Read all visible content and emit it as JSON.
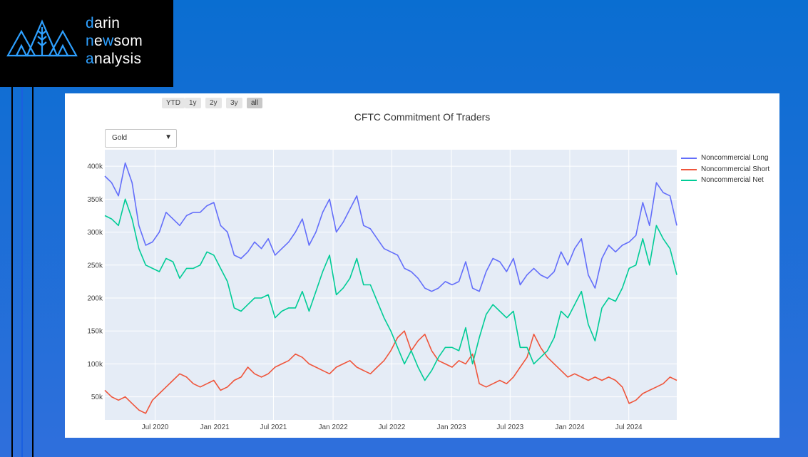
{
  "logo": {
    "line1": "darin",
    "line2": "newsom",
    "line3": "analysis",
    "accent_color": "#2ea0ff"
  },
  "range_buttons": [
    {
      "label": "YTD",
      "active": false
    },
    {
      "label": "1y",
      "active": false
    },
    {
      "label": "2y",
      "active": false
    },
    {
      "label": "3y",
      "active": false
    },
    {
      "label": "all",
      "active": true
    }
  ],
  "dropdown": {
    "selected": "Gold"
  },
  "chart_data": {
    "type": "line",
    "title": "CFTC Commitment Of Traders",
    "xlabel": "",
    "ylabel": "",
    "xlim": [
      "2020-01-28",
      "2024-11-26"
    ],
    "ylim": [
      15000,
      425000
    ],
    "yticks": [
      50000,
      100000,
      150000,
      200000,
      250000,
      300000,
      350000,
      400000
    ],
    "ytick_labels": [
      "50k",
      "100k",
      "150k",
      "200k",
      "250k",
      "300k",
      "350k",
      "400k"
    ],
    "xticks": [
      "2020-07-01",
      "2021-01-01",
      "2021-07-01",
      "2022-01-01",
      "2022-07-01",
      "2023-01-01",
      "2023-07-01",
      "2024-01-01",
      "2024-07-01"
    ],
    "xtick_labels": [
      "Jul 2020",
      "Jan 2021",
      "Jul 2021",
      "Jan 2022",
      "Jul 2022",
      "Jan 2023",
      "Jul 2023",
      "Jan 2024",
      "Jul 2024"
    ],
    "grid": true,
    "legend_position": "right",
    "plot_bgcolor": "#e5ecf6",
    "x": [
      "2020-01-28",
      "2020-02-18",
      "2020-03-10",
      "2020-03-31",
      "2020-04-21",
      "2020-05-12",
      "2020-06-02",
      "2020-06-23",
      "2020-07-14",
      "2020-08-04",
      "2020-08-25",
      "2020-09-15",
      "2020-10-06",
      "2020-10-27",
      "2020-11-17",
      "2020-12-08",
      "2020-12-29",
      "2021-01-19",
      "2021-02-09",
      "2021-03-02",
      "2021-03-23",
      "2021-04-13",
      "2021-05-04",
      "2021-05-25",
      "2021-06-15",
      "2021-07-06",
      "2021-07-27",
      "2021-08-17",
      "2021-09-07",
      "2021-09-28",
      "2021-10-19",
      "2021-11-09",
      "2021-11-30",
      "2021-12-21",
      "2022-01-11",
      "2022-02-01",
      "2022-02-22",
      "2022-03-15",
      "2022-04-05",
      "2022-04-26",
      "2022-05-17",
      "2022-06-07",
      "2022-06-28",
      "2022-07-19",
      "2022-08-09",
      "2022-08-30",
      "2022-09-20",
      "2022-10-11",
      "2022-11-01",
      "2022-11-22",
      "2022-12-13",
      "2023-01-03",
      "2023-01-24",
      "2023-02-14",
      "2023-03-07",
      "2023-03-28",
      "2023-04-18",
      "2023-05-09",
      "2023-05-30",
      "2023-06-20",
      "2023-07-11",
      "2023-08-01",
      "2023-08-22",
      "2023-09-12",
      "2023-10-03",
      "2023-10-24",
      "2023-11-14",
      "2023-12-05",
      "2023-12-26",
      "2024-01-16",
      "2024-02-06",
      "2024-02-27",
      "2024-03-19",
      "2024-04-09",
      "2024-04-30",
      "2024-05-21",
      "2024-06-11",
      "2024-07-02",
      "2024-07-23",
      "2024-08-13",
      "2024-09-03",
      "2024-09-24",
      "2024-10-15",
      "2024-11-05",
      "2024-11-26"
    ],
    "series": [
      {
        "name": "Noncommercial Long",
        "color": "#636efa",
        "values": [
          385000,
          375000,
          355000,
          405000,
          375000,
          310000,
          280000,
          285000,
          300000,
          330000,
          320000,
          310000,
          325000,
          330000,
          330000,
          340000,
          345000,
          310000,
          300000,
          265000,
          260000,
          270000,
          285000,
          275000,
          290000,
          265000,
          275000,
          285000,
          300000,
          320000,
          280000,
          300000,
          330000,
          350000,
          300000,
          315000,
          335000,
          355000,
          310000,
          305000,
          290000,
          275000,
          270000,
          265000,
          245000,
          240000,
          230000,
          215000,
          210000,
          215000,
          225000,
          220000,
          225000,
          255000,
          215000,
          210000,
          240000,
          260000,
          255000,
          240000,
          260000,
          220000,
          235000,
          245000,
          235000,
          230000,
          240000,
          270000,
          250000,
          275000,
          290000,
          235000,
          215000,
          260000,
          280000,
          270000,
          280000,
          285000,
          295000,
          345000,
          310000,
          375000,
          360000,
          355000,
          310000
        ]
      },
      {
        "name": "Noncommercial Short",
        "color": "#ef553b",
        "values": [
          60000,
          50000,
          45000,
          50000,
          40000,
          30000,
          25000,
          45000,
          55000,
          65000,
          75000,
          85000,
          80000,
          70000,
          65000,
          70000,
          75000,
          60000,
          65000,
          75000,
          80000,
          95000,
          85000,
          80000,
          85000,
          95000,
          100000,
          105000,
          115000,
          110000,
          100000,
          95000,
          90000,
          85000,
          95000,
          100000,
          105000,
          95000,
          90000,
          85000,
          95000,
          105000,
          120000,
          140000,
          150000,
          120000,
          135000,
          145000,
          120000,
          105000,
          100000,
          95000,
          105000,
          100000,
          115000,
          70000,
          65000,
          70000,
          75000,
          70000,
          80000,
          95000,
          110000,
          145000,
          125000,
          110000,
          100000,
          90000,
          80000,
          85000,
          80000,
          75000,
          80000,
          75000,
          80000,
          75000,
          65000,
          40000,
          45000,
          55000,
          60000,
          65000,
          70000,
          80000,
          75000
        ]
      },
      {
        "name": "Noncommercial Net",
        "color": "#00cc96",
        "values": [
          325000,
          320000,
          310000,
          350000,
          320000,
          275000,
          250000,
          245000,
          240000,
          260000,
          255000,
          230000,
          245000,
          245000,
          250000,
          270000,
          265000,
          245000,
          225000,
          185000,
          180000,
          190000,
          200000,
          200000,
          205000,
          170000,
          180000,
          185000,
          185000,
          210000,
          180000,
          210000,
          240000,
          265000,
          205000,
          215000,
          230000,
          260000,
          220000,
          220000,
          195000,
          170000,
          150000,
          125000,
          100000,
          120000,
          95000,
          75000,
          90000,
          110000,
          125000,
          125000,
          120000,
          155000,
          100000,
          140000,
          175000,
          190000,
          180000,
          170000,
          180000,
          125000,
          125000,
          100000,
          110000,
          120000,
          140000,
          180000,
          170000,
          190000,
          210000,
          160000,
          135000,
          185000,
          200000,
          195000,
          215000,
          245000,
          250000,
          290000,
          250000,
          310000,
          290000,
          275000,
          235000
        ]
      }
    ]
  }
}
